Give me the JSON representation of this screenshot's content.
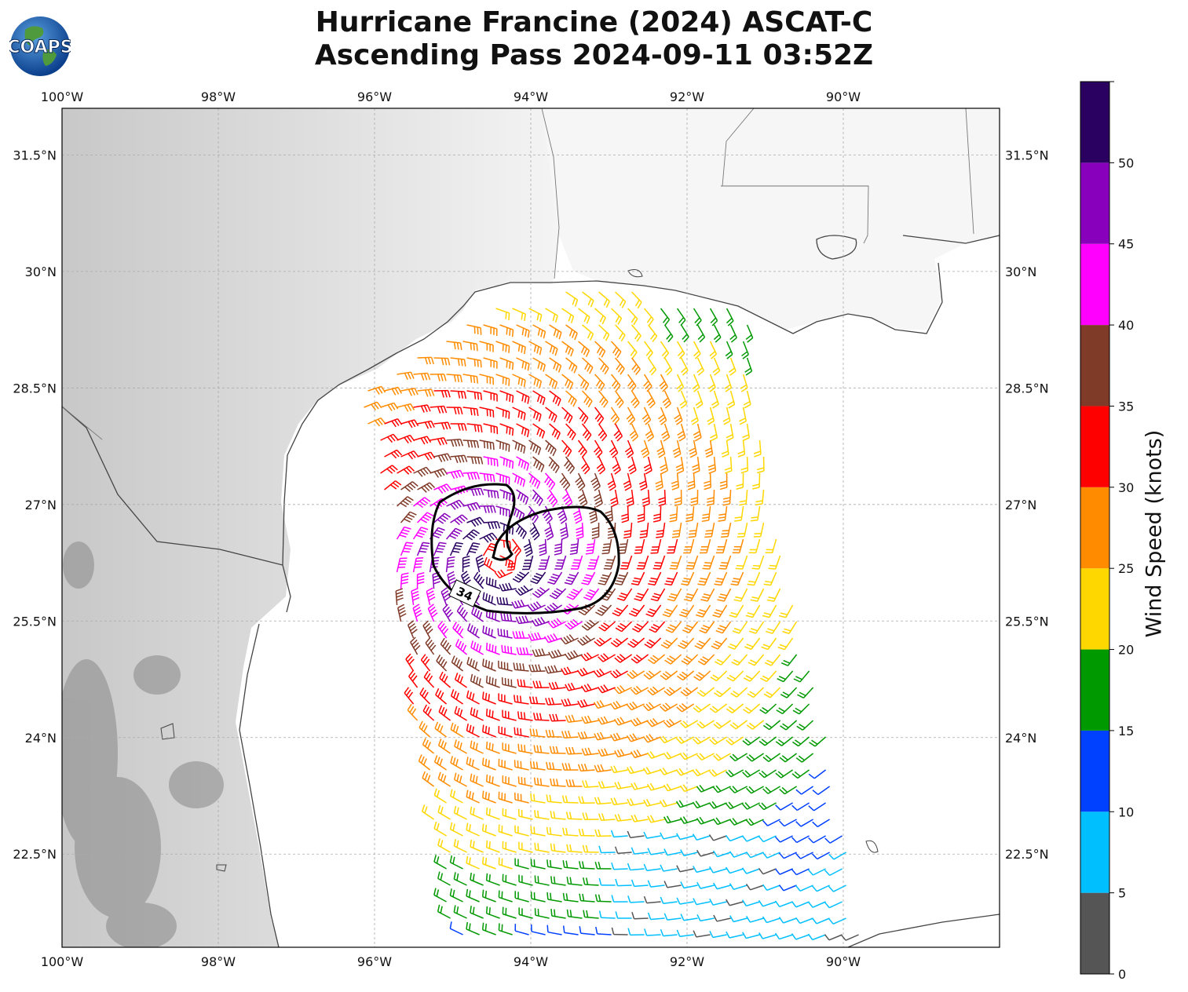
{
  "title": {
    "line1": "Hurricane Francine (2024) ASCAT-C",
    "line2": "Ascending Pass 2024-09-11 03:52Z"
  },
  "logo": {
    "text": "COAPS",
    "icon": "globe-logo-icon"
  },
  "map": {
    "lon_labels": [
      "100°W",
      "98°W",
      "96°W",
      "94°W",
      "92°W",
      "90°W"
    ],
    "lat_labels": [
      "31.5°N",
      "30°N",
      "28.5°N",
      "27°N",
      "25.5°N",
      "24°N",
      "22.5°N"
    ],
    "lon_range": [
      -100,
      -88
    ],
    "lat_range": [
      21.3,
      32.1
    ],
    "contour_label": "34",
    "storm_center": {
      "lon": -94.4,
      "lat": 26.3
    }
  },
  "colorbar": {
    "label": "Wind Speed (knots)",
    "ticks": [
      "0",
      "5",
      "10",
      "15",
      "20",
      "25",
      "30",
      "35",
      "40",
      "45",
      "50"
    ],
    "bins": [
      {
        "min": 0,
        "max": 5,
        "color": "#555555"
      },
      {
        "min": 5,
        "max": 10,
        "color": "#00bfff"
      },
      {
        "min": 10,
        "max": 15,
        "color": "#0040ff"
      },
      {
        "min": 15,
        "max": 20,
        "color": "#009900"
      },
      {
        "min": 20,
        "max": 25,
        "color": "#ffd700"
      },
      {
        "min": 25,
        "max": 30,
        "color": "#ff8c00"
      },
      {
        "min": 30,
        "max": 35,
        "color": "#ff0000"
      },
      {
        "min": 35,
        "max": 40,
        "color": "#803a28"
      },
      {
        "min": 40,
        "max": 45,
        "color": "#ff00ff"
      },
      {
        "min": 45,
        "max": 50,
        "color": "#8800bb"
      },
      {
        "min": 50,
        "max": 55,
        "color": "#2a0060"
      }
    ]
  }
}
